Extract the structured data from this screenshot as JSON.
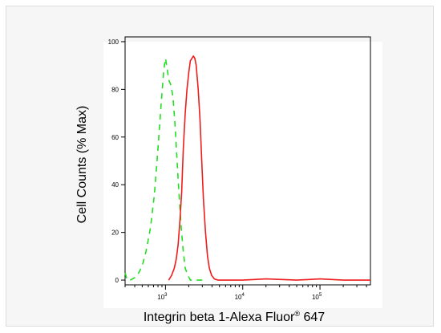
{
  "chart_data": {
    "type": "line",
    "title": "",
    "xlabel": "Integrin beta 1-Alexa Fluor",
    "xlabel_sup": "®",
    "xlabel_tail": " 647",
    "ylabel": "Cell Counts (% Max)",
    "xscale": "log",
    "xlim": [
      300,
      450000
    ],
    "ylim": [
      -2,
      102
    ],
    "yticks": [
      0,
      20,
      40,
      60,
      80,
      100
    ],
    "ytick_labels": [
      "0",
      "20",
      "40",
      "60",
      "80",
      "100"
    ],
    "xticks_major": [
      1000,
      10000,
      100000
    ],
    "xtick_labels": [
      {
        "base": "10",
        "exp": "3"
      },
      {
        "base": "10",
        "exp": "4"
      },
      {
        "base": "10",
        "exp": "5"
      }
    ],
    "grid": false,
    "series": [
      {
        "color": "#22dd22",
        "style": "dashed",
        "x": [
          300,
          320,
          350,
          400,
          450,
          500,
          560,
          640,
          720,
          800,
          880,
          950,
          1000,
          1050,
          1100,
          1170,
          1250,
          1330,
          1400,
          1500,
          1600,
          1700,
          1800,
          1950,
          2100,
          2300,
          2500,
          2800,
          3200
        ],
        "y": [
          3,
          0,
          0,
          1,
          3,
          6,
          12,
          22,
          36,
          55,
          74,
          88,
          93,
          89,
          84,
          82,
          77,
          65,
          52,
          36,
          22,
          12,
          5,
          2,
          0,
          0,
          0,
          0,
          0
        ]
      },
      {
        "color": "#ee1c1c",
        "style": "solid",
        "x": [
          1100,
          1200,
          1300,
          1380,
          1460,
          1540,
          1620,
          1700,
          1800,
          1900,
          2000,
          2100,
          2200,
          2300,
          2400,
          2500,
          2650,
          2800,
          2950,
          3100,
          3300,
          3500,
          3700,
          3950,
          4300,
          4800,
          6000,
          10000,
          20000,
          50000,
          100000,
          200000,
          450000
        ],
        "y": [
          0,
          2,
          5,
          9,
          15,
          25,
          37,
          55,
          70,
          80,
          87,
          92,
          93,
          94,
          93,
          90,
          80,
          67,
          50,
          34,
          20,
          10,
          5,
          2,
          0.5,
          0,
          0,
          0,
          0.5,
          0,
          0.5,
          0,
          0
        ]
      }
    ]
  }
}
